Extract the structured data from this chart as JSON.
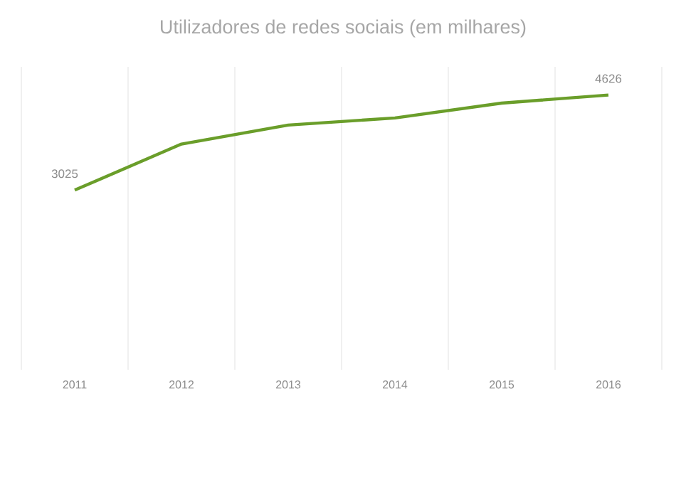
{
  "chart_data": {
    "type": "line",
    "title": "Utilizadores de redes sociais (em milhares)",
    "categories": [
      "2011",
      "2012",
      "2013",
      "2014",
      "2015",
      "2016"
    ],
    "ylim": [
      0,
      5100
    ],
    "grid": "x",
    "tick_labels": "x",
    "series": [
      {
        "color": "#6a9e2a",
        "values": [
          3025,
          3800,
          4120,
          4240,
          4490,
          4626
        ],
        "value_labels": [
          "3025",
          null,
          null,
          null,
          null,
          "4626"
        ]
      }
    ]
  }
}
